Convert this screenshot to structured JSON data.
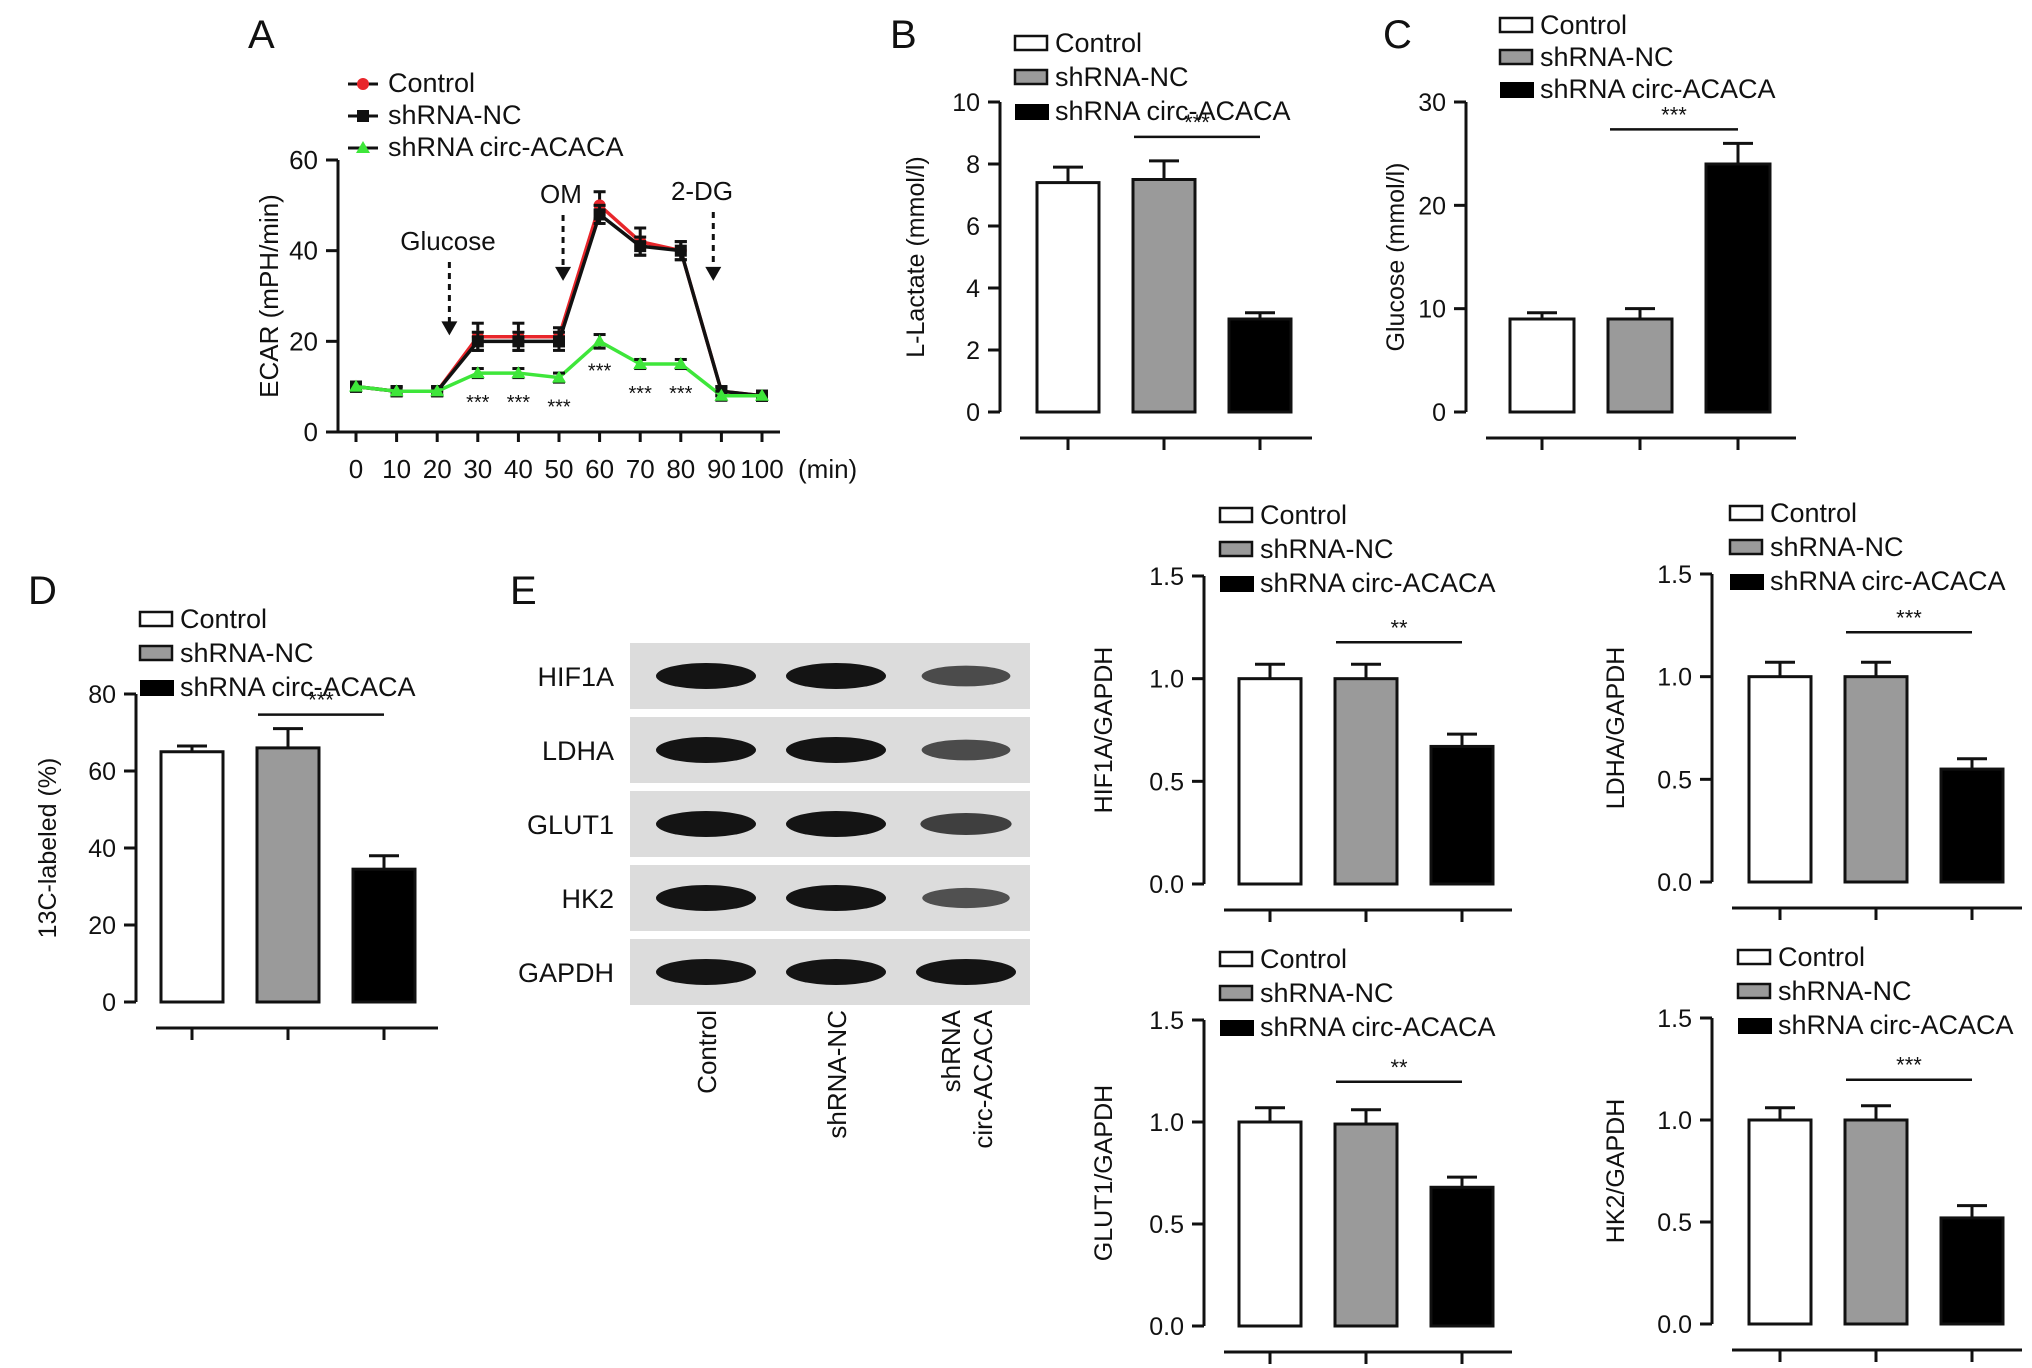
{
  "colors": {
    "control_line": "#e8262b",
    "shrna_nc_line": "#111111",
    "shrna_circ_line": "#3ee63a",
    "bar_control": "#ffffff",
    "bar_shrna_nc": "#9a9a9a",
    "bar_shrna_circ": "#000000",
    "blot_bg": "#dcdcdc",
    "band": "#141414"
  },
  "chart_data": [
    {
      "panel": "A",
      "type": "line",
      "ylabel": "ECAR (mPH/min)",
      "xunit": "(min)",
      "ylim": [
        0,
        60
      ],
      "yticks": [
        0,
        20,
        40,
        60
      ],
      "x": [
        0,
        10,
        20,
        30,
        40,
        50,
        60,
        70,
        80,
        90,
        100
      ],
      "xtick_labels": [
        "0",
        "10",
        "20",
        "30",
        "40",
        "50",
        "60",
        "70",
        "80",
        "90",
        "100"
      ],
      "legend": "top-left",
      "series": [
        {
          "name": "Control",
          "color_key": "control_line",
          "marker": "circle",
          "values": [
            10,
            9,
            9,
            21,
            21,
            21,
            50,
            42,
            40,
            9,
            8
          ],
          "err": [
            1,
            1,
            1,
            3,
            3,
            2,
            3,
            3,
            2,
            1,
            1
          ]
        },
        {
          "name": "shRNA-NC",
          "color_key": "shrna_nc_line",
          "marker": "square",
          "values": [
            10,
            9,
            9,
            20,
            20,
            20,
            48,
            41,
            40,
            9,
            8
          ],
          "err": [
            1,
            1,
            1,
            2,
            2,
            2,
            2,
            2,
            2,
            1,
            1
          ]
        },
        {
          "name": "shRNA circ-ACACA",
          "color_key": "shrna_circ_line",
          "marker": "triangle",
          "values": [
            10,
            9,
            9,
            13,
            13,
            12,
            20,
            15,
            15,
            8,
            8
          ],
          "err": [
            1,
            1,
            1,
            1,
            1,
            1,
            1.5,
            1,
            1,
            1,
            1
          ]
        }
      ],
      "annotations": [
        {
          "text": "Glucose",
          "x": 23,
          "style": "dashed-arrow",
          "tip_y": 20
        },
        {
          "text": "OM",
          "x": 51,
          "style": "dashed-arrow",
          "tip_y": 32
        },
        {
          "text": "2-DG",
          "x": 88,
          "style": "dashed-arrow",
          "tip_y": 32
        }
      ],
      "significance": [
        {
          "x": 30,
          "text": "***"
        },
        {
          "x": 40,
          "text": "***"
        },
        {
          "x": 50,
          "text": "***"
        },
        {
          "x": 60,
          "text": "***"
        },
        {
          "x": 70,
          "text": "***"
        },
        {
          "x": 80,
          "text": "***"
        }
      ]
    },
    {
      "panel": "B",
      "type": "bar",
      "ylabel": "L-Lactate (mmol/l)",
      "ylim": [
        0,
        10
      ],
      "yticks": [
        0,
        2,
        4,
        6,
        8,
        10
      ],
      "categories": [
        "Control",
        "shRNA-NC",
        "shRNA circ-ACACA"
      ],
      "values": [
        7.4,
        7.5,
        3.0
      ],
      "err": [
        0.5,
        0.6,
        0.2
      ],
      "legend": "top",
      "significance": {
        "from": 1,
        "to": 2,
        "text": "***"
      }
    },
    {
      "panel": "C",
      "type": "bar",
      "ylabel": "Glucose (mmol/l)",
      "ylim": [
        0,
        30
      ],
      "yticks": [
        0,
        10,
        20,
        30
      ],
      "categories": [
        "Control",
        "shRNA-NC",
        "shRNA circ-ACACA"
      ],
      "values": [
        9,
        9,
        24
      ],
      "err": [
        0.6,
        1.0,
        2.0
      ],
      "legend": "top",
      "significance": {
        "from": 1,
        "to": 2,
        "text": "***"
      }
    },
    {
      "panel": "D",
      "type": "bar",
      "ylabel": "13C-labeled (%)",
      "ylim": [
        0,
        80
      ],
      "yticks": [
        0,
        20,
        40,
        60,
        80
      ],
      "categories": [
        "Control",
        "shRNA-NC",
        "shRNA circ-ACACA"
      ],
      "values": [
        65,
        66,
        34.5
      ],
      "err": [
        1.5,
        5,
        3.5
      ],
      "legend": "top",
      "significance": {
        "from": 1,
        "to": 2,
        "text": "***"
      }
    },
    {
      "panel": "E",
      "type": "bar",
      "ylabel": "HIF1A/GAPDH",
      "ylim": [
        0,
        1.5
      ],
      "yticks": [
        0.0,
        0.5,
        1.0,
        1.5
      ],
      "categories": [
        "Control",
        "shRNA-NC",
        "shRNA circ-ACACA"
      ],
      "values": [
        1.0,
        1.0,
        0.67
      ],
      "err": [
        0.07,
        0.07,
        0.06
      ],
      "legend": "top",
      "significance": {
        "from": 1,
        "to": 2,
        "text": "**"
      }
    },
    {
      "panel": "E",
      "type": "bar",
      "ylabel": "LDHA/GAPDH",
      "ylim": [
        0,
        1.5
      ],
      "yticks": [
        0.0,
        0.5,
        1.0,
        1.5
      ],
      "categories": [
        "Control",
        "shRNA-NC",
        "shRNA circ-ACACA"
      ],
      "values": [
        1.0,
        1.0,
        0.55
      ],
      "err": [
        0.07,
        0.07,
        0.05
      ],
      "legend": "top",
      "significance": {
        "from": 1,
        "to": 2,
        "text": "***"
      }
    },
    {
      "panel": "E",
      "type": "bar",
      "ylabel": "GLUT1/GAPDH",
      "ylim": [
        0,
        1.5
      ],
      "yticks": [
        0.0,
        0.5,
        1.0,
        1.5
      ],
      "categories": [
        "Control",
        "shRNA-NC",
        "shRNA circ-ACACA"
      ],
      "values": [
        1.0,
        0.99,
        0.68
      ],
      "err": [
        0.07,
        0.07,
        0.05
      ],
      "legend": "top",
      "significance": {
        "from": 1,
        "to": 2,
        "text": "**"
      }
    },
    {
      "panel": "E",
      "type": "bar",
      "ylabel": "HK2/GAPDH",
      "ylim": [
        0,
        1.5
      ],
      "yticks": [
        0.0,
        0.5,
        1.0,
        1.5
      ],
      "categories": [
        "Control",
        "shRNA-NC",
        "shRNA circ-ACACA"
      ],
      "values": [
        1.0,
        1.0,
        0.52
      ],
      "err": [
        0.06,
        0.07,
        0.06
      ],
      "legend": "top",
      "significance": {
        "from": 1,
        "to": 2,
        "text": "***"
      }
    }
  ],
  "western_blot": {
    "panel": "E",
    "rows": [
      "HIF1A",
      "LDHA",
      "GLUT1",
      "HK2",
      "GAPDH"
    ],
    "lanes": [
      "Control",
      "shRNA-NC",
      "shRNA circ-ACACA"
    ],
    "lane_label_lines": [
      [
        "Control"
      ],
      [
        "shRNA-NC"
      ],
      [
        "shRNA",
        "circ-ACACA"
      ]
    ],
    "band_intensity": [
      [
        1.0,
        1.0,
        0.55
      ],
      [
        1.0,
        1.0,
        0.55
      ],
      [
        1.0,
        1.0,
        0.65
      ],
      [
        1.0,
        1.0,
        0.5
      ],
      [
        1.0,
        1.0,
        1.0
      ]
    ]
  },
  "panel_labels": [
    "A",
    "B",
    "C",
    "D",
    "E"
  ]
}
